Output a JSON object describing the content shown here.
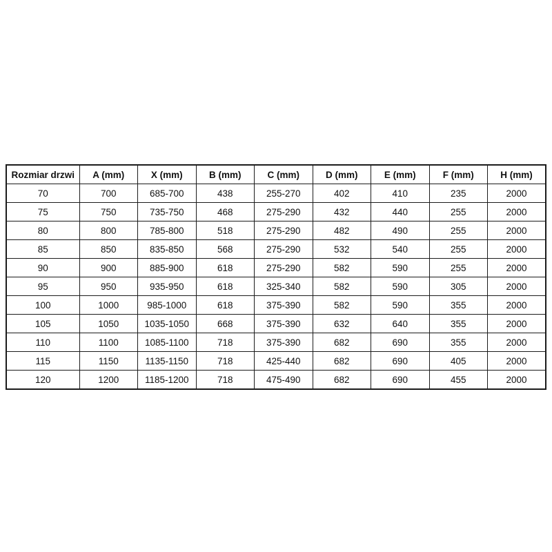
{
  "chart_data": {
    "type": "table",
    "title": "",
    "headers": [
      "Rozmiar drzwi",
      "A (mm)",
      "X (mm)",
      "B (mm)",
      "C (mm)",
      "D (mm)",
      "E (mm)",
      "F (mm)",
      "H (mm)"
    ],
    "rows": [
      [
        "70",
        "700",
        "685-700",
        "438",
        "255-270",
        "402",
        "410",
        "235",
        "2000"
      ],
      [
        "75",
        "750",
        "735-750",
        "468",
        "275-290",
        "432",
        "440",
        "255",
        "2000"
      ],
      [
        "80",
        "800",
        "785-800",
        "518",
        "275-290",
        "482",
        "490",
        "255",
        "2000"
      ],
      [
        "85",
        "850",
        "835-850",
        "568",
        "275-290",
        "532",
        "540",
        "255",
        "2000"
      ],
      [
        "90",
        "900",
        "885-900",
        "618",
        "275-290",
        "582",
        "590",
        "255",
        "2000"
      ],
      [
        "95",
        "950",
        "935-950",
        "618",
        "325-340",
        "582",
        "590",
        "305",
        "2000"
      ],
      [
        "100",
        "1000",
        "985-1000",
        "618",
        "375-390",
        "582",
        "590",
        "355",
        "2000"
      ],
      [
        "105",
        "1050",
        "1035-1050",
        "668",
        "375-390",
        "632",
        "640",
        "355",
        "2000"
      ],
      [
        "110",
        "1100",
        "1085-1100",
        "718",
        "375-390",
        "682",
        "690",
        "355",
        "2000"
      ],
      [
        "115",
        "1150",
        "1135-1150",
        "718",
        "425-440",
        "682",
        "690",
        "405",
        "2000"
      ],
      [
        "120",
        "1200",
        "1185-1200",
        "718",
        "475-490",
        "682",
        "690",
        "455",
        "2000"
      ]
    ],
    "layout": {
      "grid": true,
      "header_bold": true,
      "background": "#ffffff",
      "border_color": "#1a1a1a",
      "text_color": "#111111"
    }
  }
}
